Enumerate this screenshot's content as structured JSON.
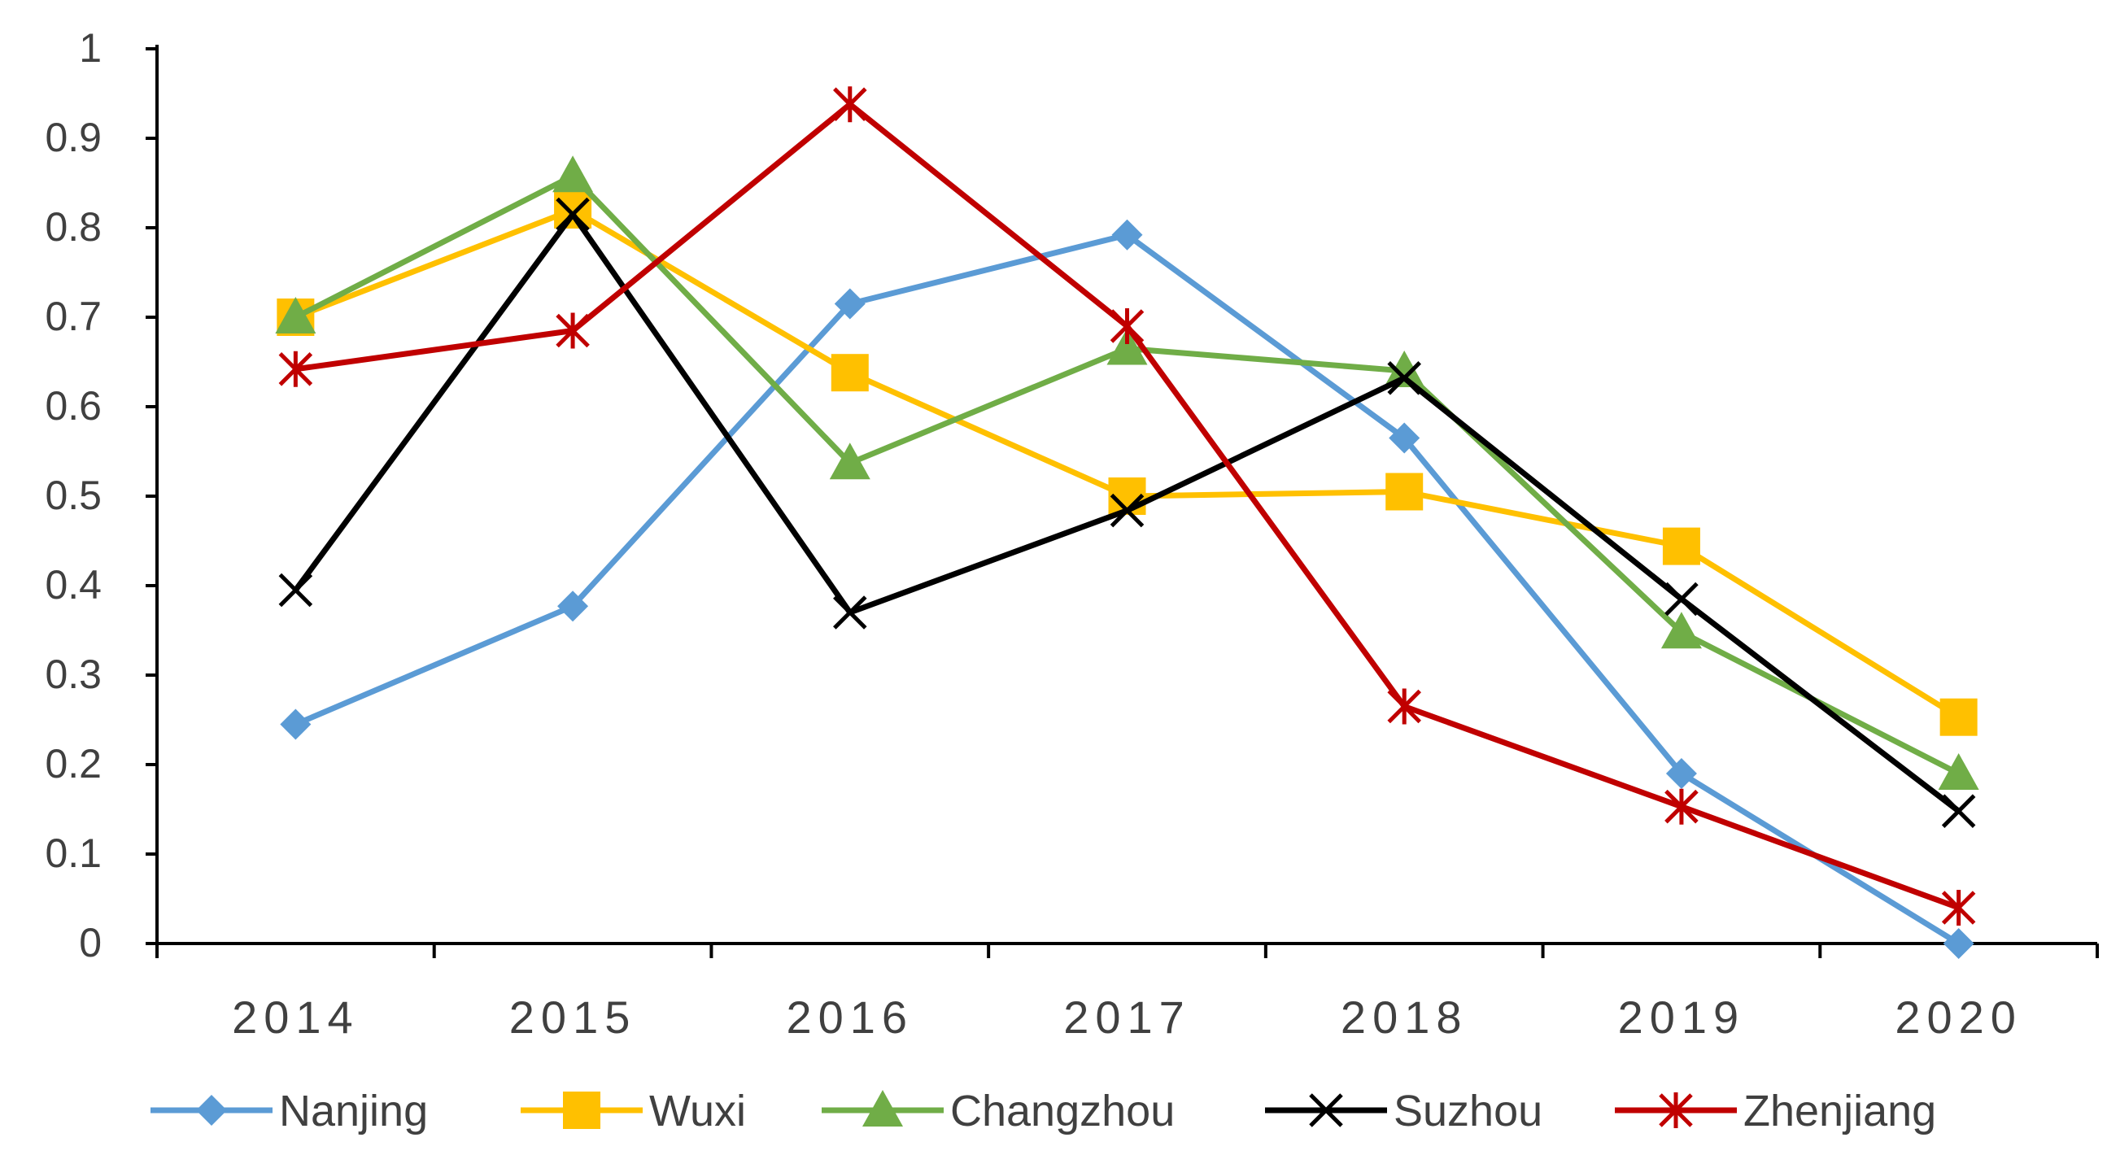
{
  "chart_data": {
    "type": "line",
    "title": "",
    "xlabel": "",
    "ylabel": "",
    "categories": [
      "2014",
      "2015",
      "2016",
      "2017",
      "2018",
      "2019",
      "2020"
    ],
    "ylim": [
      0,
      1
    ],
    "y_ticks": [
      "0",
      "0.1",
      "0.2",
      "0.3",
      "0.4",
      "0.5",
      "0.6",
      "0.7",
      "0.8",
      "0.9",
      "1"
    ],
    "grid": false,
    "legend_position": "bottom",
    "series": [
      {
        "name": "Nanjing",
        "color": "#5B9BD5",
        "marker": "diamond",
        "values": [
          0.245,
          0.377,
          0.715,
          0.792,
          0.565,
          0.19,
          0.0
        ]
      },
      {
        "name": "Wuxi",
        "color": "#FFC000",
        "marker": "square",
        "values": [
          0.7,
          0.82,
          0.638,
          0.5,
          0.505,
          0.444,
          0.253
        ]
      },
      {
        "name": "Changzhou",
        "color": "#70AD47",
        "marker": "triangle",
        "values": [
          0.7,
          0.858,
          0.537,
          0.665,
          0.64,
          0.348,
          0.19
        ]
      },
      {
        "name": "Suzhou",
        "color": "#000000",
        "marker": "x",
        "values": [
          0.395,
          0.815,
          0.37,
          0.484,
          0.632,
          0.385,
          0.148
        ]
      },
      {
        "name": "Zhenjiang",
        "color": "#C00000",
        "marker": "star",
        "values": [
          0.642,
          0.685,
          0.938,
          0.69,
          0.265,
          0.153,
          0.04
        ]
      }
    ]
  }
}
